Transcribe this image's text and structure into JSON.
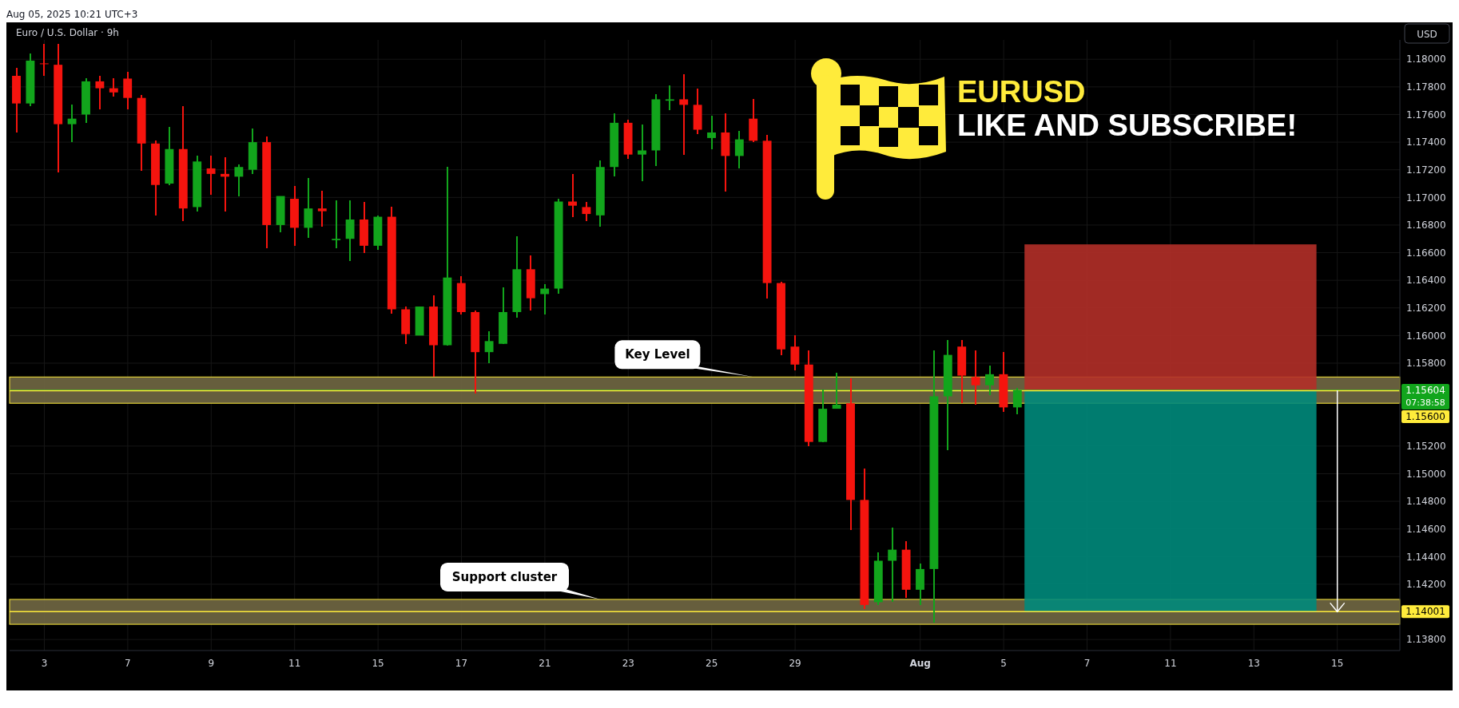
{
  "chart_data": {
    "type": "candlestick",
    "title": "Euro / U.S. Dollar · 9h",
    "ylabel": "USD",
    "annotations": [
      "Aug 05, 2025 10:21 UTC+3",
      "EURUSD",
      "LIKE AND SUBSCRIBE!",
      "07:38:58"
    ],
    "categories": [
      null,
      null,
      "3",
      null,
      null,
      null,
      null,
      null,
      "7",
      null,
      null,
      null,
      null,
      null,
      "9",
      null,
      null,
      null,
      null,
      null,
      "11",
      null,
      null,
      null,
      null,
      null,
      "15",
      null,
      null,
      null,
      null,
      null,
      "17",
      null,
      null,
      null,
      null,
      null,
      "21",
      null,
      null,
      null,
      null,
      null,
      "23",
      null,
      null,
      null,
      null,
      null,
      "25",
      null,
      null,
      null,
      null,
      null,
      "29",
      null,
      null,
      null,
      null,
      null,
      null,
      null,
      null,
      "Aug",
      null,
      null,
      null,
      null,
      null,
      "5",
      null,
      null,
      null,
      null,
      null,
      "7",
      null,
      null,
      null,
      null,
      null,
      "11",
      null,
      null,
      null,
      null,
      null,
      "13",
      null,
      null,
      null,
      null,
      null,
      "15",
      null,
      null,
      null,
      null
    ],
    "ohlc": [
      [
        1.1788,
        1.1794,
        1.1747,
        1.1768
      ],
      [
        1.1768,
        1.1804,
        1.1766,
        1.1799
      ],
      [
        1.1797,
        1.1811,
        1.1788,
        1.1797
      ],
      [
        1.1796,
        1.1811,
        1.1718,
        1.1753
      ],
      [
        1.1753,
        1.1767,
        1.174,
        1.1757
      ],
      [
        1.176,
        1.1786,
        1.1754,
        1.1784
      ],
      [
        1.1784,
        1.1788,
        1.1764,
        1.1779
      ],
      [
        1.1779,
        1.1786,
        1.1773,
        1.1776
      ],
      [
        1.1786,
        1.1791,
        1.1764,
        1.1772
      ],
      [
        1.1772,
        1.1774,
        1.1719,
        1.1739
      ],
      [
        1.1739,
        1.1741,
        1.1687,
        1.1709
      ],
      [
        1.171,
        1.1751,
        1.1709,
        1.1735
      ],
      [
        1.1735,
        1.1766,
        1.1683,
        1.1692
      ],
      [
        1.1693,
        1.173,
        1.169,
        1.1726
      ],
      [
        1.1721,
        1.173,
        1.1702,
        1.1717
      ],
      [
        1.1717,
        1.1729,
        1.169,
        1.1715
      ],
      [
        1.1715,
        1.1724,
        1.1701,
        1.1722
      ],
      [
        1.172,
        1.175,
        1.1717,
        1.174
      ],
      [
        1.174,
        1.1744,
        1.1663,
        1.168
      ],
      [
        1.168,
        1.1701,
        1.1675,
        1.1701
      ],
      [
        1.1699,
        1.1708,
        1.1665,
        1.1678
      ],
      [
        1.1678,
        1.1714,
        1.1671,
        1.1692
      ],
      [
        1.1692,
        1.1705,
        1.1679,
        1.169
      ],
      [
        1.1669,
        1.1698,
        1.1663,
        1.167
      ],
      [
        1.167,
        1.1698,
        1.1654,
        1.1684
      ],
      [
        1.1684,
        1.1697,
        1.166,
        1.1665
      ],
      [
        1.1665,
        1.1687,
        1.1662,
        1.1686
      ],
      [
        1.1686,
        1.1693,
        1.1616,
        1.1619
      ],
      [
        1.1619,
        1.1621,
        1.1594,
        1.1601
      ],
      [
        1.16,
        1.1621,
        1.16,
        1.1621
      ],
      [
        1.1621,
        1.1629,
        1.157,
        1.1593
      ],
      [
        1.1593,
        1.1722,
        1.1593,
        1.1642
      ],
      [
        1.1638,
        1.1643,
        1.1615,
        1.1617
      ],
      [
        1.1617,
        1.1618,
        1.1558,
        1.1588
      ],
      [
        1.1588,
        1.1603,
        1.158,
        1.1596
      ],
      [
        1.1594,
        1.1635,
        1.1594,
        1.1617
      ],
      [
        1.1617,
        1.1672,
        1.1613,
        1.1648
      ],
      [
        1.1648,
        1.1658,
        1.1618,
        1.1627
      ],
      [
        1.163,
        1.1637,
        1.1615,
        1.1634
      ],
      [
        1.1634,
        1.1699,
        1.163,
        1.1697
      ],
      [
        1.1697,
        1.1717,
        1.1686,
        1.1694
      ],
      [
        1.1693,
        1.1697,
        1.1683,
        1.1688
      ],
      [
        1.1687,
        1.1727,
        1.1679,
        1.1722
      ],
      [
        1.1722,
        1.1761,
        1.1715,
        1.1754
      ],
      [
        1.1754,
        1.1756,
        1.1728,
        1.1731
      ],
      [
        1.1731,
        1.1753,
        1.1712,
        1.1734
      ],
      [
        1.1734,
        1.1775,
        1.1723,
        1.1771
      ],
      [
        1.177,
        1.1781,
        1.1763,
        1.1771
      ],
      [
        1.1771,
        1.1789,
        1.1731,
        1.1767
      ],
      [
        1.1767,
        1.1779,
        1.1746,
        1.1749
      ],
      [
        1.1743,
        1.1759,
        1.1735,
        1.1747
      ],
      [
        1.1747,
        1.1761,
        1.1704,
        1.173
      ],
      [
        1.173,
        1.1748,
        1.1721,
        1.1742
      ],
      [
        1.1757,
        1.1771,
        1.174,
        1.1741
      ],
      [
        1.1741,
        1.1745,
        1.1627,
        1.1638
      ],
      [
        1.1638,
        1.1639,
        1.1586,
        1.159
      ],
      [
        1.1592,
        1.16,
        1.1575,
        1.1579
      ],
      [
        1.1579,
        1.1589,
        1.152,
        1.1523
      ],
      [
        1.1523,
        1.1561,
        1.1523,
        1.1547
      ],
      [
        1.1547,
        1.1573,
        1.1547,
        1.155
      ],
      [
        1.1551,
        1.1569,
        1.1459,
        1.1481
      ],
      [
        1.1481,
        1.1504,
        1.1402,
        1.1405
      ],
      [
        1.1407,
        1.1443,
        1.1405,
        1.1437
      ],
      [
        1.1437,
        1.1461,
        1.1407,
        1.1445
      ],
      [
        1.1445,
        1.1451,
        1.141,
        1.1416
      ],
      [
        1.1416,
        1.1435,
        1.1405,
        1.1431
      ],
      [
        1.1431,
        1.1589,
        1.1392,
        1.1556
      ],
      [
        1.1556,
        1.1597,
        1.1517,
        1.1586
      ],
      [
        1.1592,
        1.1597,
        1.1551,
        1.1571
      ],
      [
        1.157,
        1.1589,
        1.155,
        1.1564
      ],
      [
        1.1564,
        1.1578,
        1.1557,
        1.1572
      ],
      [
        1.1572,
        1.1588,
        1.1545,
        1.1548
      ],
      [
        1.1548,
        1.1562,
        1.1543,
        1.15604
      ],
      null,
      null,
      null,
      null,
      null,
      null,
      null,
      null,
      null,
      null,
      null,
      null,
      null,
      null,
      null,
      null,
      null,
      null,
      null,
      null,
      null,
      null,
      null,
      null,
      null,
      null,
      null
    ],
    "colors": [
      "#f5140e",
      "#12a51c",
      "#f5140e",
      "#f5140e",
      "#12a51c",
      "#12a51c",
      "#f5140e",
      "#f5140e",
      "#f5140e",
      "#f5140e",
      "#f5140e",
      "#12a51c",
      "#f5140e",
      "#12a51c",
      "#f5140e",
      "#f5140e",
      "#12a51c",
      "#12a51c",
      "#f5140e",
      "#12a51c",
      "#f5140e",
      "#12a51c",
      "#f5140e",
      "#12a51c",
      "#12a51c",
      "#f5140e",
      "#12a51c",
      "#f5140e",
      "#f5140e",
      "#12a51c",
      "#f5140e",
      "#12a51c",
      "#f5140e",
      "#f5140e",
      "#12a51c",
      "#12a51c",
      "#12a51c",
      "#f5140e",
      "#12a51c",
      "#12a51c",
      "#f5140e",
      "#f5140e",
      "#12a51c",
      "#12a51c",
      "#f5140e",
      "#12a51c",
      "#12a51c",
      "#12a51c",
      "#f5140e",
      "#f5140e",
      "#12a51c",
      "#f5140e",
      "#12a51c",
      "#f5140e",
      "#f5140e",
      "#f5140e",
      "#f5140e",
      "#f5140e",
      "#12a51c",
      "#12a51c",
      "#f5140e",
      "#f5140e",
      "#12a51c",
      "#12a51c",
      "#f5140e",
      "#12a51c",
      "#12a51c",
      "#12a51c",
      "#f5140e",
      "#f5140e",
      "#12a51c",
      "#f5140e",
      "#12a51c",
      null,
      null,
      null,
      null,
      null,
      null,
      null,
      null,
      null,
      null,
      null,
      null,
      null,
      null,
      null,
      null,
      null,
      null,
      null,
      null,
      null,
      null,
      null,
      null,
      null,
      null,
      null
    ],
    "ylim": [
      1.1372,
      1.1814
    ],
    "yticks": [
      {
        "value": 1.138,
        "label": "1.13800"
      },
      {
        "value": 1.142,
        "label": "1.14200"
      },
      {
        "value": 1.144,
        "label": "1.14400"
      },
      {
        "value": 1.146,
        "label": "1.14600"
      },
      {
        "value": 1.148,
        "label": "1.14800"
      },
      {
        "value": 1.15,
        "label": "1.15000"
      },
      {
        "value": 1.152,
        "label": "1.15200"
      },
      {
        "value": 1.158,
        "label": "1.15800"
      },
      {
        "value": 1.16,
        "label": "1.16000"
      },
      {
        "value": 1.162,
        "label": "1.16200"
      },
      {
        "value": 1.164,
        "label": "1.16400"
      },
      {
        "value": 1.166,
        "label": "1.16600"
      },
      {
        "value": 1.168,
        "label": "1.16800"
      },
      {
        "value": 1.17,
        "label": "1.17000"
      },
      {
        "value": 1.172,
        "label": "1.17200"
      },
      {
        "value": 1.174,
        "label": "1.17400"
      },
      {
        "value": 1.176,
        "label": "1.17600"
      },
      {
        "value": 1.178,
        "label": "1.17800"
      },
      {
        "value": 1.18,
        "label": "1.18000"
      }
    ],
    "ref_lines": [
      {
        "axis": "y",
        "value": 1.15604,
        "label": "1.15604",
        "color": "#12a51c"
      },
      {
        "axis": "y",
        "value": 1.156,
        "label": "1.15600",
        "color": "#ffeb3b"
      },
      {
        "axis": "y",
        "value": 1.14001,
        "label": "1.14001",
        "color": "#ffeb3b"
      }
    ],
    "bands": [
      {
        "axis": "y",
        "from": 1.1551,
        "to": 1.157,
        "label": "Key Level",
        "color": "#ffeb3b"
      },
      {
        "axis": "y",
        "from": 1.1391,
        "to": 1.1409,
        "label": "Support cluster",
        "color": "#ffeb3b"
      },
      {
        "axis": "y",
        "from": 1.15604,
        "to": 1.1666,
        "color": "#b22f28"
      },
      {
        "axis": "y",
        "from": 1.14001,
        "to": 1.15604,
        "color": "#00897b"
      }
    ],
    "grid": true
  }
}
